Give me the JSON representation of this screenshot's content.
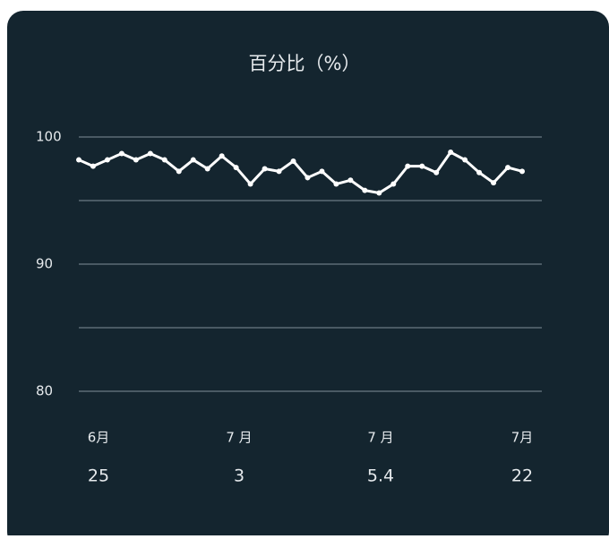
{
  "chart_data": {
    "type": "line",
    "title": "百分比（%）",
    "values": [
      98.2,
      97.7,
      98.2,
      98.7,
      98.2,
      98.7,
      98.2,
      97.3,
      98.2,
      97.5,
      98.5,
      97.6,
      96.3,
      97.5,
      97.3,
      98.1,
      96.8,
      97.3,
      96.3,
      96.6,
      95.8,
      95.6,
      96.3,
      97.7,
      97.7,
      97.2,
      98.8,
      98.2,
      97.2,
      96.4,
      97.6,
      97.3
    ],
    "color": "#ffffff",
    "ylim": [
      80,
      100
    ],
    "yticks": [
      80,
      90,
      100
    ],
    "grid_lines": [
      80,
      85,
      90,
      95,
      100
    ],
    "xlabels": [
      {
        "month": "6月",
        "day": "25"
      },
      {
        "month": "7 月",
        "day": "3"
      },
      {
        "month": "7 月",
        "day": "5.4"
      },
      {
        "month": "7月",
        "day": "22"
      }
    ]
  }
}
